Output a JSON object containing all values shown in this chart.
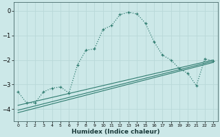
{
  "xlabel": "Humidex (Indice chaleur)",
  "bg_color": "#cce8e8",
  "grid_color": "#b8d8d8",
  "line_color": "#2d7a6e",
  "xlim": [
    -0.5,
    23.5
  ],
  "ylim": [
    -4.5,
    0.35
  ],
  "yticks": [
    0,
    -1,
    -2,
    -3,
    -4
  ],
  "xticks": [
    0,
    1,
    2,
    3,
    4,
    5,
    6,
    7,
    8,
    9,
    10,
    11,
    12,
    13,
    14,
    15,
    16,
    17,
    18,
    19,
    20,
    21,
    22,
    23
  ],
  "curve1_x": [
    0,
    1,
    2,
    3,
    4,
    5,
    6,
    7,
    8,
    9,
    10,
    11,
    12,
    13,
    14,
    15,
    16,
    17,
    18,
    19,
    20,
    21,
    22,
    23
  ],
  "curve1_y": [
    -3.3,
    -3.75,
    -3.75,
    -3.3,
    -3.15,
    -3.1,
    -3.35,
    -2.2,
    -1.6,
    -1.55,
    -0.75,
    -0.6,
    -0.15,
    -0.05,
    -0.12,
    -0.5,
    -1.25,
    -1.8,
    -2.0,
    -2.35,
    -2.55,
    -3.05,
    -1.95,
    -2.05
  ],
  "curve2_x": [
    0,
    23
  ],
  "curve2_y": [
    -3.85,
    -2.0
  ],
  "curve3_x": [
    0,
    23
  ],
  "curve3_y": [
    -4.05,
    -2.05
  ],
  "curve4_x": [
    0,
    23
  ],
  "curve4_y": [
    -4.15,
    -2.1
  ]
}
